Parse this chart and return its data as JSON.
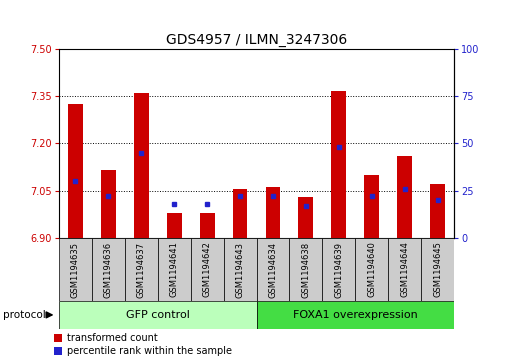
{
  "title": "GDS4957 / ILMN_3247306",
  "samples": [
    "GSM1194635",
    "GSM1194636",
    "GSM1194637",
    "GSM1194641",
    "GSM1194642",
    "GSM1194643",
    "GSM1194634",
    "GSM1194638",
    "GSM1194639",
    "GSM1194640",
    "GSM1194644",
    "GSM1194645"
  ],
  "bar_values": [
    7.325,
    7.115,
    7.36,
    6.98,
    6.98,
    7.055,
    7.06,
    7.03,
    7.365,
    7.1,
    7.16,
    7.07
  ],
  "percentile_values": [
    30,
    22,
    45,
    18,
    18,
    22,
    22,
    17,
    48,
    22,
    26,
    20
  ],
  "y_min": 6.9,
  "y_max": 7.5,
  "y_ticks": [
    6.9,
    7.05,
    7.2,
    7.35,
    7.5
  ],
  "y2_ticks": [
    0,
    25,
    50,
    75,
    100
  ],
  "bar_color": "#cc0000",
  "dot_color": "#2222cc",
  "gfp_label": "GFP control",
  "foxa1_label": "FOXA1 overexpression",
  "gfp_color": "#bbffbb",
  "foxa1_color": "#44dd44",
  "sample_bg_color": "#cccccc",
  "legend_red_label": "transformed count",
  "legend_blue_label": "percentile rank within the sample",
  "bar_width": 0.45,
  "protocol_label": "protocol",
  "title_fontsize": 10,
  "tick_fontsize": 7,
  "sample_fontsize": 6,
  "group_fontsize": 8,
  "legend_fontsize": 7
}
